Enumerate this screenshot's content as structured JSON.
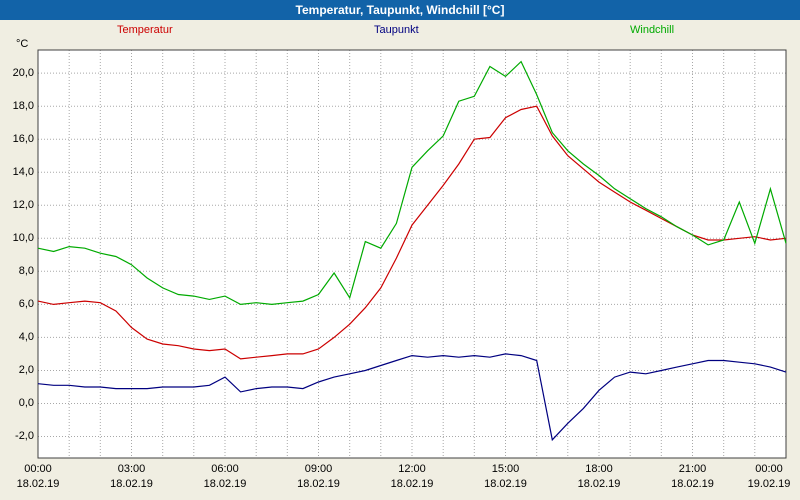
{
  "title_bar": {
    "text": "Temperatur, Taupunkt, Windchill [°C]"
  },
  "axes": {
    "y_unit": "°C"
  },
  "colors": {
    "titlebar_bg": "#1263a8",
    "titlebar_text": "#ffffff",
    "page_bg": "#f0eee2",
    "plot_bg": "#ffffff",
    "grid": "#a8a8a8",
    "temperatur": "#cc0000",
    "taupunkt": "#000080",
    "windchill": "#00aa00"
  },
  "legend": [
    {
      "label": "Temperatur",
      "color": "#cc0000"
    },
    {
      "label": "Taupunkt",
      "color": "#000080"
    },
    {
      "label": "Windchill",
      "color": "#00aa00"
    }
  ],
  "chart_data": {
    "type": "line",
    "title": "Temperatur, Taupunkt, Windchill [°C]",
    "ylabel": "°C",
    "xlabel": "",
    "grid": "dotted",
    "legend_position": "top",
    "xlim": [
      0,
      24
    ],
    "ylim": [
      -3.3,
      21.4
    ],
    "x": [
      0,
      0.5,
      1,
      1.5,
      2,
      2.5,
      3,
      3.5,
      4,
      4.5,
      5,
      5.5,
      6,
      6.5,
      7,
      7.5,
      8,
      8.5,
      9,
      9.5,
      10,
      10.5,
      11,
      11.5,
      12,
      12.5,
      13,
      13.5,
      14,
      14.5,
      15,
      15.5,
      16,
      16.5,
      17,
      17.5,
      18,
      18.5,
      19,
      19.5,
      20,
      20.5,
      21,
      21.5,
      22,
      22.5,
      23,
      23.5,
      24
    ],
    "series": [
      {
        "name": "Temperatur",
        "color": "#cc0000",
        "values": [
          6.2,
          6.0,
          6.1,
          6.2,
          6.1,
          5.6,
          4.6,
          3.9,
          3.6,
          3.5,
          3.3,
          3.2,
          3.3,
          2.7,
          2.8,
          2.9,
          3.0,
          3.0,
          3.3,
          4.0,
          4.8,
          5.8,
          7.0,
          8.8,
          10.8,
          12.0,
          13.2,
          14.5,
          16.0,
          16.1,
          17.3,
          17.8,
          18.0,
          16.2,
          15.0,
          14.2,
          13.4,
          12.8,
          12.2,
          11.7,
          11.2,
          10.7,
          10.2,
          9.9,
          9.9,
          10.0,
          10.1,
          9.9,
          10.0
        ]
      },
      {
        "name": "Taupunkt",
        "color": "#000080",
        "values": [
          1.2,
          1.1,
          1.1,
          1.0,
          1.0,
          0.9,
          0.9,
          0.9,
          1.0,
          1.0,
          1.0,
          1.1,
          1.6,
          0.7,
          0.9,
          1.0,
          1.0,
          0.9,
          1.3,
          1.6,
          1.8,
          2.0,
          2.3,
          2.6,
          2.9,
          2.8,
          2.9,
          2.8,
          2.9,
          2.8,
          3.0,
          2.9,
          2.6,
          -2.2,
          -1.2,
          -0.3,
          0.8,
          1.6,
          1.9,
          1.8,
          2.0,
          2.2,
          2.4,
          2.6,
          2.6,
          2.5,
          2.4,
          2.2,
          1.9
        ]
      },
      {
        "name": "Windchill",
        "color": "#00aa00",
        "values": [
          9.4,
          9.2,
          9.5,
          9.4,
          9.1,
          8.9,
          8.4,
          7.6,
          7.0,
          6.6,
          6.5,
          6.3,
          6.5,
          6.0,
          6.1,
          6.0,
          6.1,
          6.2,
          6.6,
          7.9,
          6.4,
          9.8,
          9.4,
          10.9,
          14.3,
          15.3,
          16.2,
          18.3,
          18.6,
          20.4,
          19.8,
          20.7,
          18.7,
          16.4,
          15.3,
          14.5,
          13.8,
          13.0,
          12.4,
          11.8,
          11.3,
          10.7,
          10.2,
          9.6,
          9.9,
          12.2,
          9.7,
          13.0,
          9.7
        ]
      }
    ],
    "y_ticks": [
      {
        "value": 20,
        "label": "20,0"
      },
      {
        "value": 18,
        "label": "18,0"
      },
      {
        "value": 16,
        "label": "16,0"
      },
      {
        "value": 14,
        "label": "14,0"
      },
      {
        "value": 12,
        "label": "12,0"
      },
      {
        "value": 10,
        "label": "10,0"
      },
      {
        "value": 8,
        "label": "8,0"
      },
      {
        "value": 6,
        "label": "6,0"
      },
      {
        "value": 4,
        "label": "4,0"
      },
      {
        "value": 2,
        "label": "2,0"
      },
      {
        "value": 0,
        "label": "0,0"
      },
      {
        "value": -2,
        "label": "-2,0"
      }
    ],
    "x_ticks": [
      {
        "hour": 0,
        "time": "00:00",
        "date": "18.02.19"
      },
      {
        "hour": 3,
        "time": "03:00",
        "date": "18.02.19"
      },
      {
        "hour": 6,
        "time": "06:00",
        "date": "18.02.19"
      },
      {
        "hour": 9,
        "time": "09:00",
        "date": "18.02.19"
      },
      {
        "hour": 12,
        "time": "12:00",
        "date": "18.02.19"
      },
      {
        "hour": 15,
        "time": "15:00",
        "date": "18.02.19"
      },
      {
        "hour": 18,
        "time": "18:00",
        "date": "18.02.19"
      },
      {
        "hour": 21,
        "time": "21:00",
        "date": "18.02.19"
      },
      {
        "hour": 24,
        "time": "00:00",
        "date": "19.02.19"
      }
    ]
  }
}
